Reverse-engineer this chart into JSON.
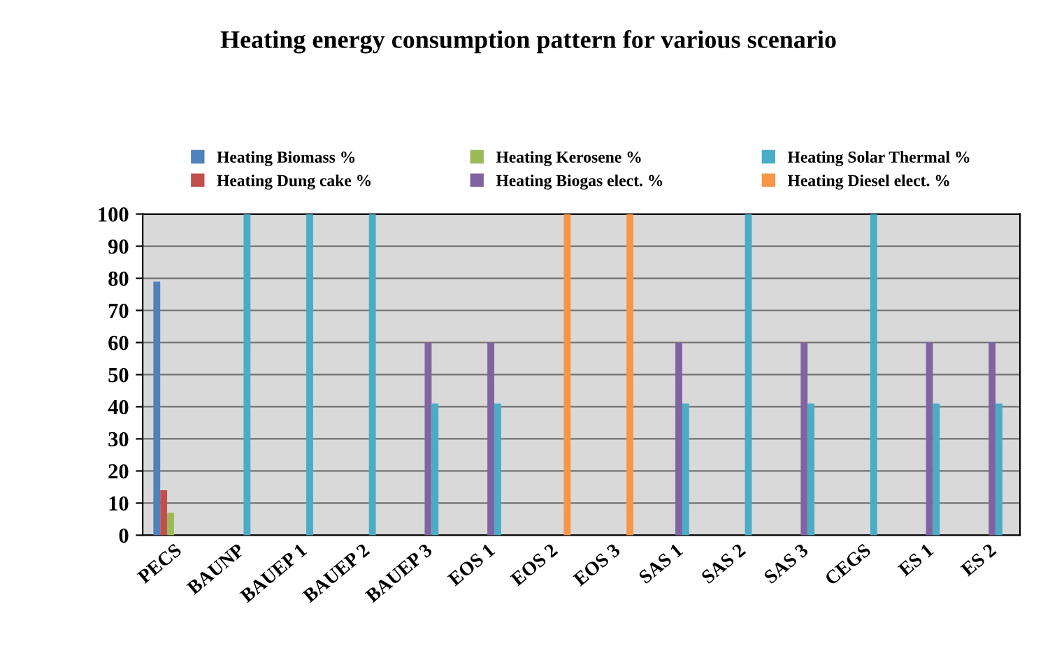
{
  "chart_data": {
    "type": "bar",
    "title": "Heating energy consumption pattern for various scenario",
    "categories": [
      "PECS",
      "BAUNP",
      "BAUEP 1",
      "BAUEP 2",
      "BAUEP 3",
      "EOS 1",
      "EOS 2",
      "EOS 3",
      "SAS 1",
      "SAS 2",
      "SAS 3",
      "CEGS",
      "ES 1",
      "ES 2"
    ],
    "series": [
      {
        "name": "Heating Biomass %",
        "color": "#4f81bd",
        "values": [
          79,
          null,
          null,
          null,
          null,
          null,
          null,
          null,
          null,
          null,
          null,
          null,
          null,
          null
        ]
      },
      {
        "name": "Heating Dung cake %",
        "color": "#c0504d",
        "values": [
          14,
          null,
          null,
          null,
          null,
          null,
          null,
          null,
          null,
          null,
          null,
          null,
          null,
          null
        ]
      },
      {
        "name": "Heating Kerosene %",
        "color": "#9bbb59",
        "values": [
          7,
          null,
          null,
          null,
          null,
          null,
          null,
          null,
          null,
          null,
          null,
          null,
          null,
          null
        ]
      },
      {
        "name": "Heating Biogas elect. %",
        "color": "#8064a2",
        "values": [
          null,
          null,
          null,
          null,
          60,
          60,
          null,
          null,
          60,
          null,
          60,
          null,
          60,
          60
        ]
      },
      {
        "name": "Heating Solar Thermal %",
        "color": "#4bacc6",
        "values": [
          null,
          100,
          100,
          100,
          41,
          41,
          null,
          null,
          41,
          100,
          41,
          100,
          41,
          41
        ]
      },
      {
        "name": "Heating Diesel elect. %",
        "color": "#f79646",
        "values": [
          null,
          null,
          null,
          null,
          null,
          null,
          100,
          100,
          null,
          null,
          null,
          null,
          null,
          null
        ]
      }
    ],
    "ylim": [
      0,
      100
    ],
    "yticks": [
      0,
      10,
      20,
      30,
      40,
      50,
      60,
      70,
      80,
      90,
      100
    ],
    "grid": "y",
    "legend": "top"
  }
}
